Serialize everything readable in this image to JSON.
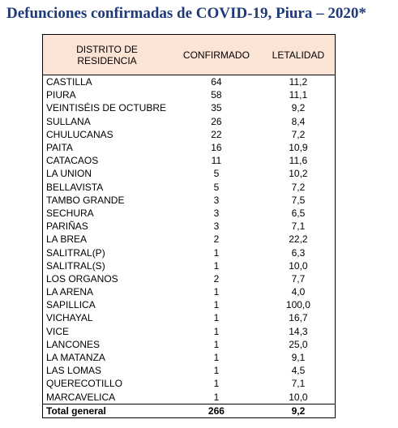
{
  "title": "Defunciones confirmadas de COVID-19, Piura – 2020*",
  "table": {
    "header": [
      "DISTRITO DE RESIDENCIA",
      "CONFIRMADO",
      "LETALIDAD"
    ],
    "rows": [
      [
        "CASTILLA",
        "64",
        "11,2"
      ],
      [
        "PIURA",
        "58",
        "11,1"
      ],
      [
        "VEINTISÉIS DE OCTUBRE",
        "35",
        "9,2"
      ],
      [
        "SULLANA",
        "26",
        "8,4"
      ],
      [
        "CHULUCANAS",
        "22",
        "7,2"
      ],
      [
        "PAITA",
        "16",
        "10,9"
      ],
      [
        "CATACAOS",
        "11",
        "11,6"
      ],
      [
        "LA UNION",
        "5",
        "10,2"
      ],
      [
        "BELLAVISTA",
        "5",
        "7,2"
      ],
      [
        "TAMBO GRANDE",
        "3",
        "7,5"
      ],
      [
        "SECHURA",
        "3",
        "6,5"
      ],
      [
        "PARIÑAS",
        "3",
        "7,1"
      ],
      [
        "LA BREA",
        "2",
        "22,2"
      ],
      [
        "SALITRAL(P)",
        "1",
        "6,3"
      ],
      [
        "SALITRAL(S)",
        "1",
        "10,0"
      ],
      [
        "LOS ORGANOS",
        "2",
        "7,7"
      ],
      [
        "LA ARENA",
        "1",
        "4,0"
      ],
      [
        "SAPILLICA",
        "1",
        "100,0"
      ],
      [
        "VICHAYAL",
        "1",
        "16,7"
      ],
      [
        "VICE",
        "1",
        "14,3"
      ],
      [
        "LANCONES",
        "1",
        "25,0"
      ],
      [
        "LA MATANZA",
        "1",
        "9,1"
      ],
      [
        "LAS LOMAS",
        "1",
        "4,5"
      ],
      [
        "QUERECOTILLO",
        "1",
        "7,1"
      ],
      [
        "MARCAVELICA",
        "1",
        "10,0"
      ]
    ],
    "total": [
      "Total general",
      "266",
      "9,2"
    ]
  }
}
